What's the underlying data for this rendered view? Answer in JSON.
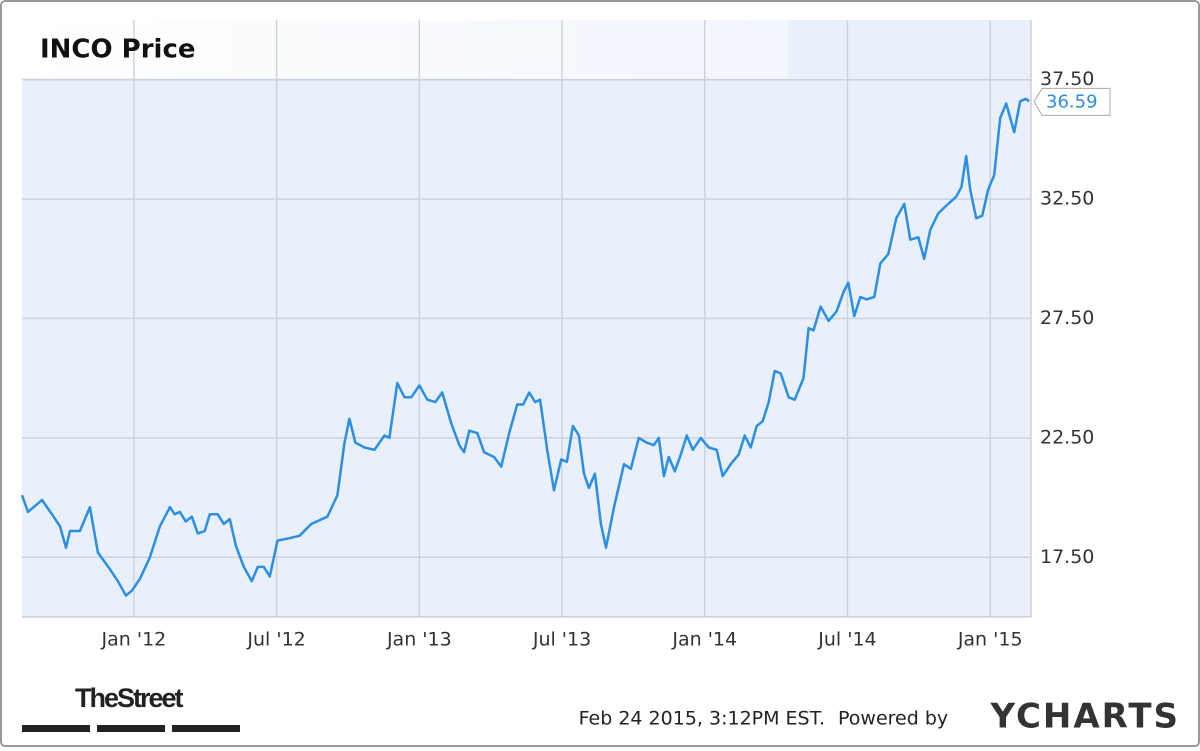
{
  "chart_data": {
    "type": "line",
    "title": "INCO Price",
    "x": [
      2011.608,
      2011.629,
      2011.678,
      2011.713,
      2011.741,
      2011.762,
      2011.776,
      2011.811,
      2011.846,
      2011.874,
      2011.916,
      2011.944,
      2011.972,
      2011.993,
      2012.021,
      2012.056,
      2012.091,
      2012.126,
      2012.143,
      2012.161,
      2012.182,
      2012.203,
      2012.224,
      2012.248,
      2012.266,
      2012.294,
      2012.315,
      2012.336,
      2012.357,
      2012.385,
      2012.413,
      2012.434,
      2012.455,
      2012.476,
      2012.503,
      2012.545,
      2012.58,
      2012.622,
      2012.678,
      2012.713,
      2012.738,
      2012.755,
      2012.776,
      2012.808,
      2012.843,
      2012.878,
      2012.895,
      2012.923,
      2012.948,
      2012.972,
      2013.0,
      2013.028,
      2013.056,
      2013.08,
      2013.112,
      2013.14,
      2013.157,
      2013.175,
      2013.203,
      2013.227,
      2013.262,
      2013.287,
      2013.315,
      2013.343,
      2013.364,
      2013.385,
      2013.406,
      2013.423,
      2013.448,
      2013.472,
      2013.497,
      2013.517,
      2013.538,
      2013.559,
      2013.577,
      2013.594,
      2013.615,
      2013.636,
      2013.654,
      2013.682,
      2013.717,
      2013.741,
      2013.769,
      2013.797,
      2013.822,
      2013.839,
      2013.857,
      2013.874,
      2013.895,
      2013.916,
      2013.937,
      2013.958,
      2013.986,
      2014.014,
      2014.042,
      2014.063,
      2014.091,
      2014.119,
      2014.14,
      2014.161,
      2014.182,
      2014.203,
      2014.224,
      2014.245,
      2014.266,
      2014.294,
      2014.315,
      2014.346,
      2014.364,
      2014.381,
      2014.406,
      2014.434,
      2014.462,
      2014.486,
      2014.503,
      2014.524,
      2014.545,
      2014.566,
      2014.594,
      2014.615,
      2014.643,
      2014.671,
      2014.699,
      2014.72,
      2014.748,
      2014.769,
      2014.79,
      2014.818,
      2014.853,
      2014.881,
      2014.899,
      2014.916,
      2014.93,
      2014.951,
      2014.972,
      2014.993,
      2015.014,
      2015.035,
      2015.056,
      2015.084,
      2015.105,
      2015.126,
      2015.136
    ],
    "values": [
      20.1,
      19.4,
      19.9,
      19.3,
      18.8,
      17.9,
      18.6,
      18.6,
      19.6,
      17.7,
      17.0,
      16.5,
      15.9,
      16.1,
      16.6,
      17.5,
      18.8,
      19.6,
      19.3,
      19.4,
      19.0,
      19.2,
      18.5,
      18.6,
      19.3,
      19.3,
      18.9,
      19.1,
      18.0,
      17.1,
      16.5,
      17.1,
      17.1,
      16.7,
      18.2,
      18.3,
      18.4,
      18.9,
      19.2,
      20.1,
      22.3,
      23.3,
      22.3,
      22.1,
      22.0,
      22.6,
      22.5,
      24.8,
      24.2,
      24.2,
      24.7,
      24.1,
      24.0,
      24.4,
      23.1,
      22.2,
      21.9,
      22.8,
      22.7,
      21.9,
      21.7,
      21.3,
      22.7,
      23.9,
      23.9,
      24.4,
      24.0,
      24.1,
      22.0,
      20.3,
      21.6,
      21.5,
      23.0,
      22.6,
      21.0,
      20.4,
      21.0,
      18.9,
      17.9,
      19.6,
      21.4,
      21.2,
      22.5,
      22.3,
      22.2,
      22.5,
      20.9,
      21.7,
      21.1,
      21.8,
      22.6,
      22.0,
      22.5,
      22.1,
      22.0,
      20.9,
      21.4,
      21.8,
      22.6,
      22.1,
      23.0,
      23.2,
      24.0,
      25.3,
      25.2,
      24.2,
      24.1,
      25.0,
      27.1,
      27.0,
      28.0,
      27.4,
      27.8,
      28.6,
      29.0,
      27.6,
      28.4,
      28.3,
      28.4,
      29.8,
      30.2,
      31.7,
      32.3,
      30.8,
      30.9,
      30.0,
      31.2,
      31.9,
      32.3,
      32.6,
      33.0,
      34.3,
      32.9,
      31.7,
      31.8,
      32.9,
      33.5,
      35.9,
      36.5,
      35.3,
      36.6,
      36.7,
      36.59
    ],
    "color": "#2b8fe3",
    "xlim": [
      2011.608,
      2015.143
    ],
    "xticks": [
      {
        "value": 2012,
        "label": "Jan '12"
      },
      {
        "value": 2012.5,
        "label": "Jul '12"
      },
      {
        "value": 2013,
        "label": "Jan '13"
      },
      {
        "value": 2013.5,
        "label": "Jul '13"
      },
      {
        "value": 2014,
        "label": "Jan '14"
      },
      {
        "value": 2014.5,
        "label": "Jul '14"
      },
      {
        "value": 2015,
        "label": "Jan '15"
      }
    ],
    "ylim": [
      15,
      40
    ],
    "yticks": [
      {
        "value": 17.5,
        "label": "17.50"
      },
      {
        "value": 22.5,
        "label": "22.50"
      },
      {
        "value": 27.5,
        "label": "27.50"
      },
      {
        "value": 32.5,
        "label": "32.50"
      },
      {
        "value": 37.5,
        "label": "37.50"
      }
    ],
    "grid": true
  },
  "footer": {
    "brand": "TheStreet",
    "timestamp": "Feb 24 2015, 3:12PM EST.",
    "powered": "Powered by",
    "logo": "YCHARTS"
  }
}
